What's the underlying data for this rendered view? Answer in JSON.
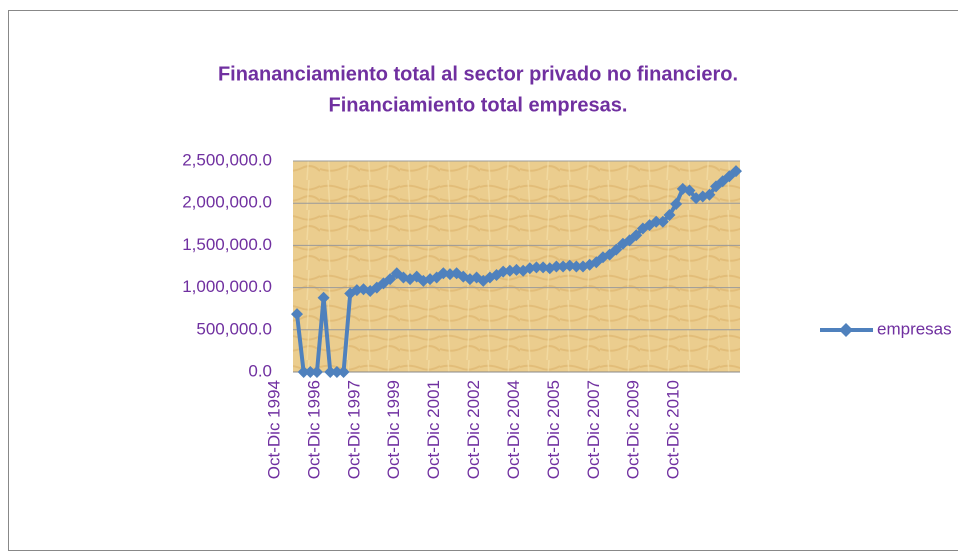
{
  "chart_data": {
    "type": "line",
    "title": "Finananciamiento total al sector privado no financiero.",
    "subtitle": "Financiamiento total empresas.",
    "categories": [
      "Oct-Dic 1994",
      null,
      null,
      null,
      null,
      null,
      "Oct-Dic 1996",
      null,
      null,
      null,
      null,
      null,
      "Oct-Dic 1997",
      null,
      null,
      null,
      null,
      null,
      "Oct-Dic 1999",
      null,
      null,
      null,
      null,
      null,
      "Oct-Dic 2001",
      null,
      null,
      null,
      null,
      null,
      "Oct-Dic 2002",
      null,
      null,
      null,
      null,
      null,
      "Oct-Dic 2004",
      null,
      null,
      null,
      null,
      null,
      "Oct-Dic 2005",
      null,
      null,
      null,
      null,
      null,
      "Oct-Dic 2007",
      null,
      null,
      null,
      null,
      null,
      "Oct-Dic 2009",
      null,
      null,
      null,
      null,
      null,
      "Oct-Dic 2010",
      null,
      null,
      null,
      null,
      null,
      null
    ],
    "series": [
      {
        "name": "empresas",
        "color": "#4f81bd",
        "values": [
          685000,
          0,
          0,
          0,
          880000,
          0,
          0,
          0,
          930000,
          970000,
          980000,
          960000,
          1000000,
          1050000,
          1100000,
          1170000,
          1120000,
          1100000,
          1130000,
          1080000,
          1100000,
          1120000,
          1170000,
          1160000,
          1170000,
          1130000,
          1100000,
          1120000,
          1080000,
          1120000,
          1150000,
          1190000,
          1200000,
          1210000,
          1200000,
          1230000,
          1240000,
          1240000,
          1230000,
          1250000,
          1250000,
          1260000,
          1250000,
          1250000,
          1270000,
          1300000,
          1360000,
          1390000,
          1450000,
          1520000,
          1560000,
          1620000,
          1700000,
          1740000,
          1780000,
          1780000,
          1860000,
          1990000,
          2170000,
          2150000,
          2060000,
          2080000,
          2100000,
          2200000,
          2260000,
          2320000,
          2380000
        ]
      }
    ],
    "ylim": [
      0,
      2500000
    ],
    "yticks": [
      {
        "value": 0,
        "label": "0.0"
      },
      {
        "value": 500000,
        "label": "500,000.0"
      },
      {
        "value": 1000000,
        "label": "1,000,000.0"
      },
      {
        "value": 1500000,
        "label": "1,500,000.0"
      },
      {
        "value": 2000000,
        "label": "2,000,000.0"
      },
      {
        "value": 2500000,
        "label": "2,500,000.0"
      }
    ],
    "grid": true,
    "legend": "right"
  }
}
